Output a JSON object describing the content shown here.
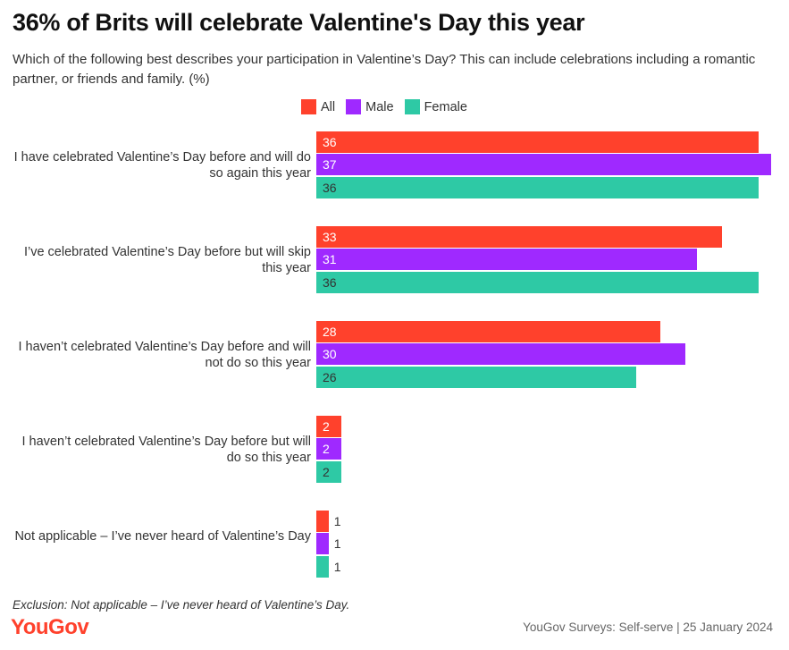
{
  "title": "36% of Brits will celebrate Valentine's Day this year",
  "subtitle": "Which of the following best describes your participation in Valentine’s Day? This can include celebrations including a romantic partner, or friends and family. (%)",
  "footnote": "Exclusion: Not applicable – I’ve never heard of Valentine’s Day.",
  "logo": "YouGov",
  "source": "YouGov Surveys: Self-serve | 25 January 2024",
  "chart_data": {
    "type": "bar",
    "orientation": "horizontal",
    "grid": false,
    "legend_position": "top",
    "categories": [
      "I have celebrated Valentine’s Day before and will do so again this year",
      "I’ve celebrated Valentine’s Day before but will skip this year",
      "I haven’t celebrated Valentine’s Day before and will not do so this year",
      "I haven’t celebrated Valentine’s Day before but will do so this year",
      "Not applicable – I’ve never heard of Valentine’s Day"
    ],
    "series": [
      {
        "name": "All",
        "color": "#ff412c",
        "values": [
          36,
          33,
          28,
          2,
          1
        ]
      },
      {
        "name": "Male",
        "color": "#9f29ff",
        "values": [
          37,
          31,
          30,
          2,
          1
        ]
      },
      {
        "name": "Female",
        "color": "#2ec9a5",
        "values": [
          36,
          36,
          26,
          2,
          1
        ]
      }
    ],
    "xlim": [
      0,
      37
    ]
  }
}
